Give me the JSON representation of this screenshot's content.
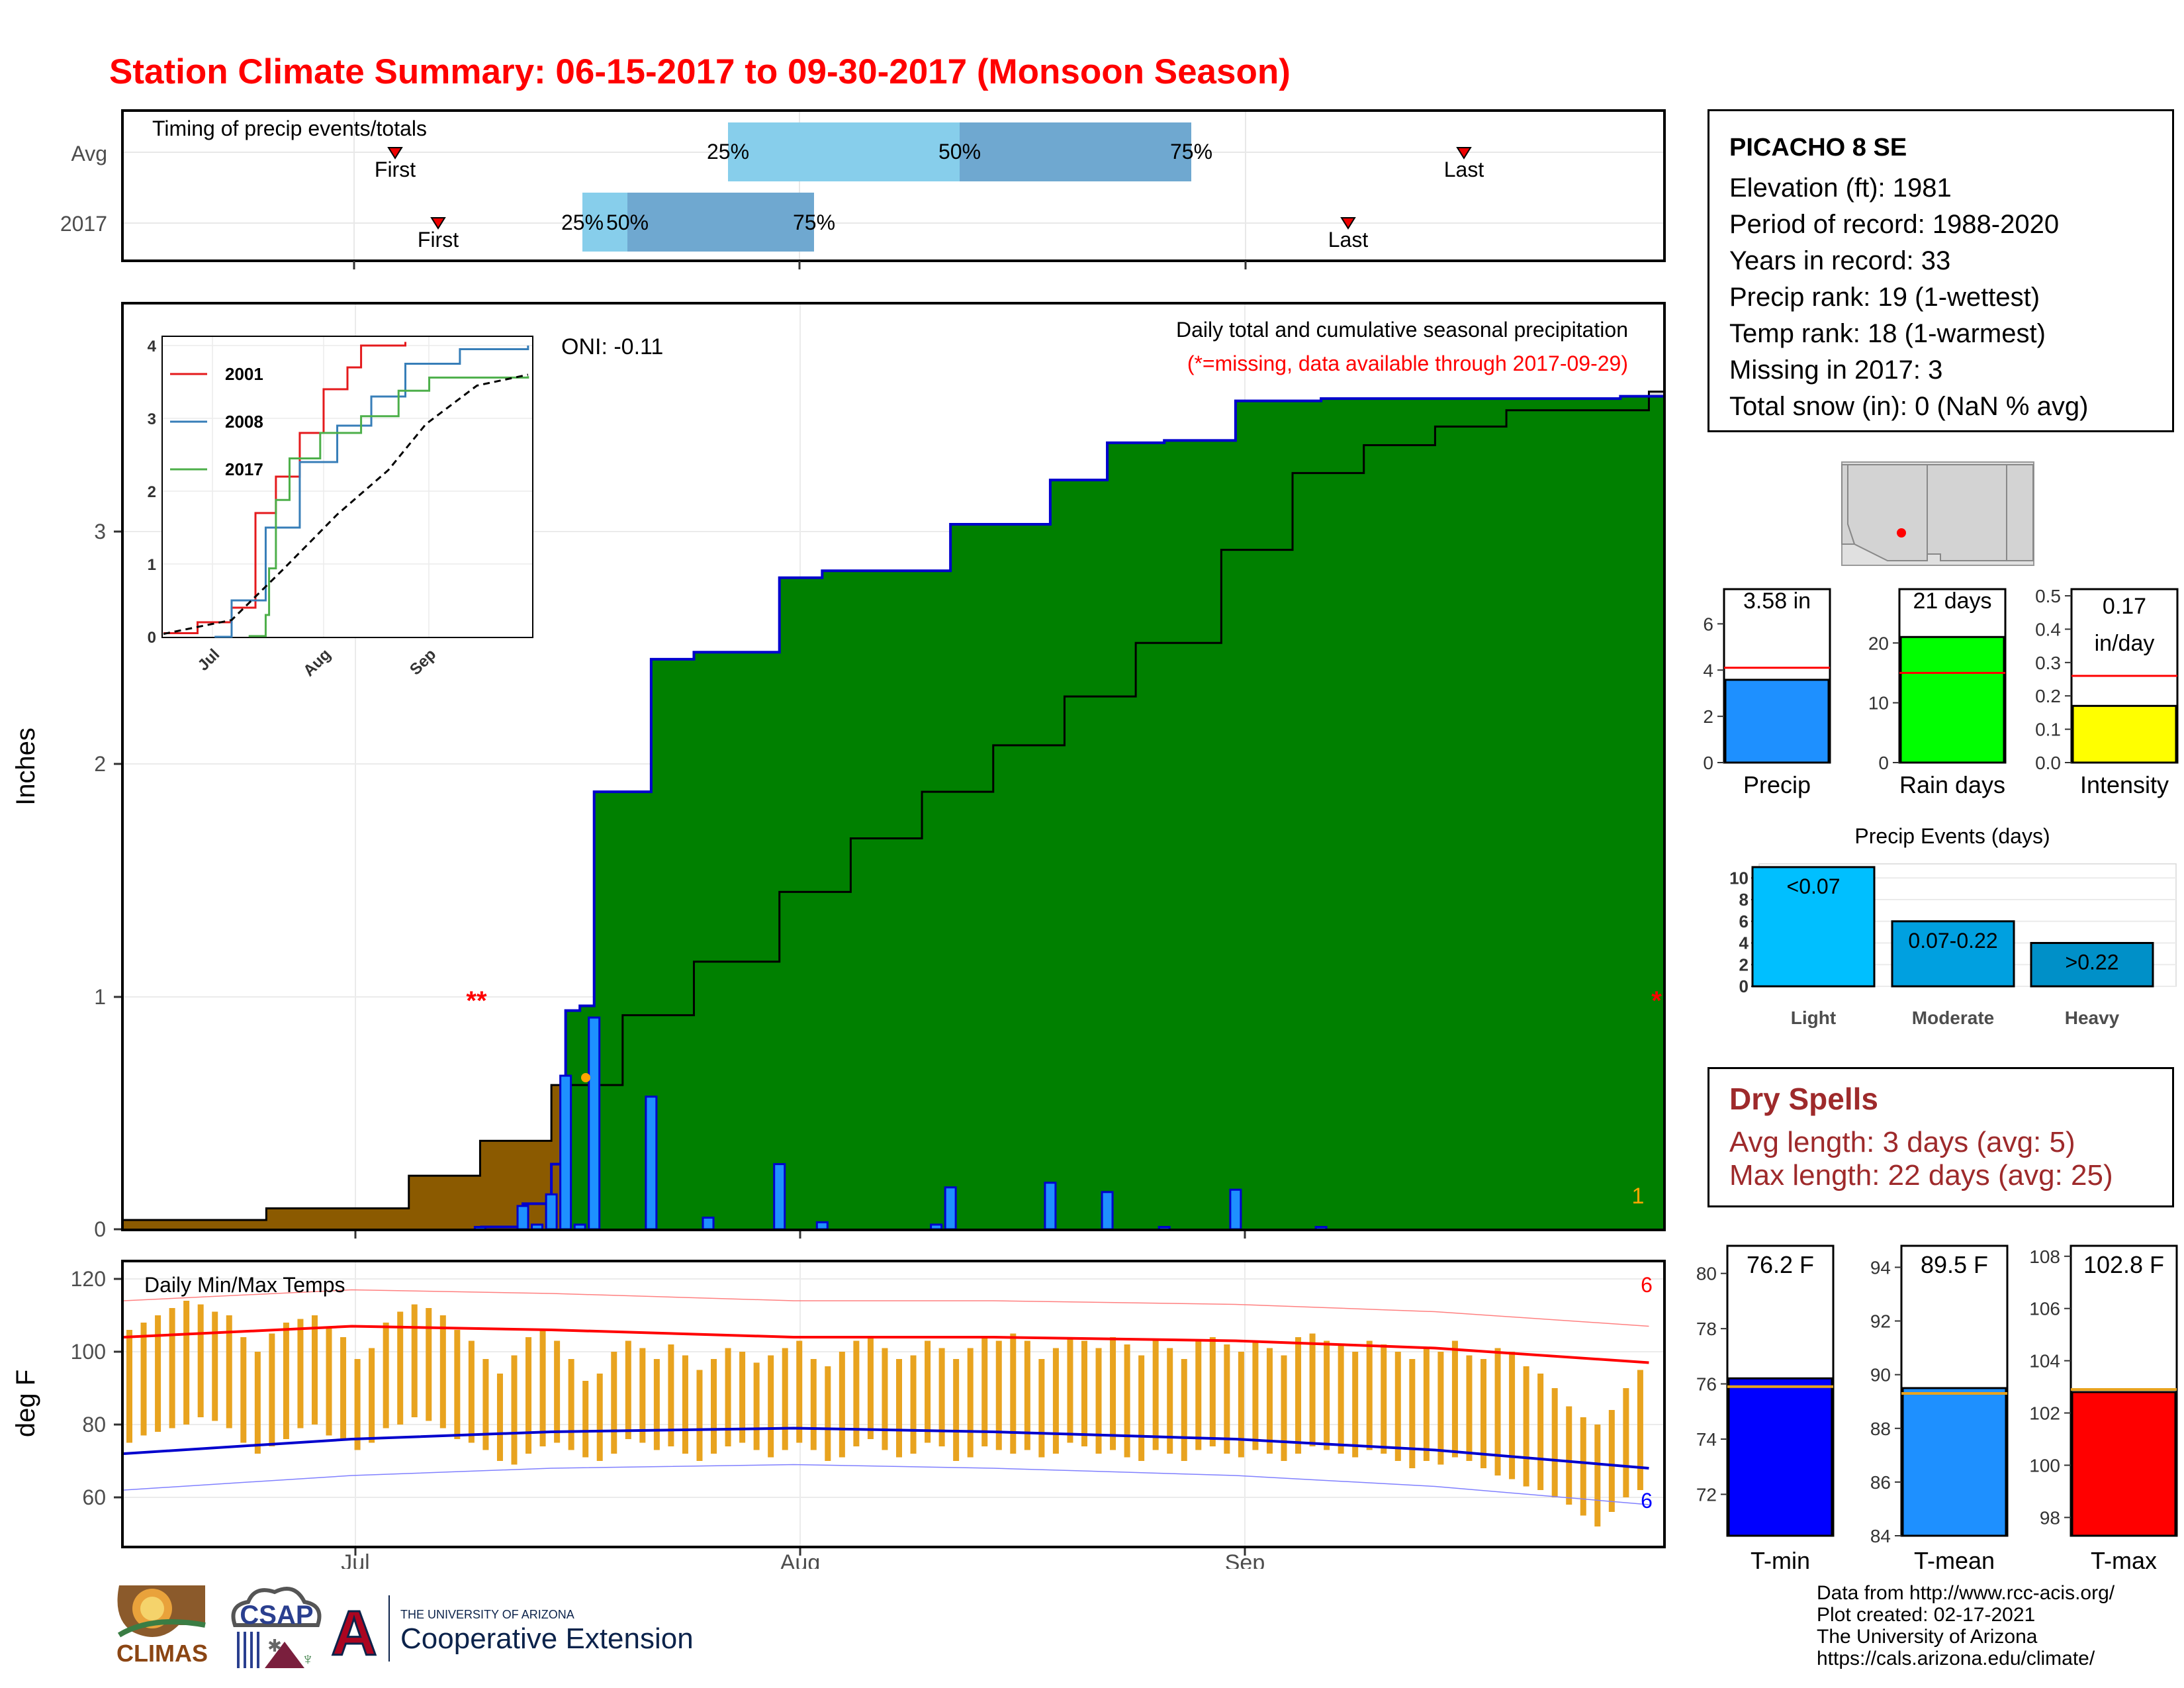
{
  "title": "Station Climate Summary: 06-15-2017 to 09-30-2017 (Monsoon Season)",
  "colors": {
    "title": "#ff0000",
    "cum_2017": "#8b5a00",
    "cum_above_avg": "#008000",
    "cum_avg_area": "#dddddd",
    "daily_bar": "#1e90ff",
    "timing_light": "#87ceeb",
    "timing_dark": "#6fa8d0",
    "tmax_line": "#ff0000",
    "tmin_line": "#0000cd",
    "temp_bar": "#e8a31f",
    "dry_spell_text": "#9e2a2b"
  },
  "timing": {
    "title": "Timing of precip events/totals",
    "rows": [
      {
        "label": "Avg",
        "first": "06-30",
        "q25": "07-29",
        "q50": "08-08",
        "q75": "08-23",
        "last": "09-14"
      },
      {
        "label": "2017",
        "first": "07-02",
        "q25": "07-16",
        "q50": "07-18",
        "q75": "07-31",
        "last": "09-06"
      }
    ],
    "first_label": "First",
    "last_label": "Last",
    "pct_labels": [
      "25%",
      "50%",
      "75%"
    ]
  },
  "main": {
    "ylabel": "Inches",
    "oni": "ONI: -0.11",
    "chart_title": "Daily total and cumulative seasonal precipitation",
    "subtitle": "(*=missing, data available through 2017-09-29)",
    "missing_markers": [
      "**",
      "*"
    ],
    "missing_count_label": "1",
    "yticks": [
      "0",
      "1",
      "2",
      "3"
    ],
    "xticks": [
      "Jul",
      "Aug",
      "Sep"
    ]
  },
  "inset": {
    "legend": [
      "2001",
      "2008",
      "2017"
    ],
    "yticks": [
      "0",
      "1",
      "2",
      "3",
      "4"
    ],
    "xticks": [
      "Jul",
      "Aug",
      "Sep"
    ]
  },
  "temps": {
    "title": "Daily Min/Max Temps",
    "ylabel": "deg F",
    "yticks": [
      "60",
      "80",
      "100",
      "120"
    ],
    "xticks": [
      "Jul",
      "Aug",
      "Sep"
    ],
    "count_max": "6",
    "count_min": "6"
  },
  "station": {
    "name": "PICACHO 8 SE",
    "lines": [
      "Elevation (ft): 1981",
      "Period of record: 1988-2020",
      "Years in record: 33",
      "Precip rank: 19 (1-wettest)",
      "Temp rank: 18 (1-warmest)",
      "Missing in 2017: 3",
      "Total snow (in): 0 (NaN % avg)"
    ]
  },
  "summary_bars": {
    "precip": {
      "label": "Precip",
      "value_label": "3.58 in",
      "value": 3.58,
      "avg": 4.1,
      "ymax": 7.5,
      "ticks": [
        "0",
        "2",
        "4",
        "6"
      ],
      "tick_vals": [
        0,
        2,
        4,
        6
      ],
      "color": "#1e90ff"
    },
    "raindays": {
      "label": "Rain days",
      "value_label": "21 days",
      "value": 21,
      "avg": 15,
      "ymax": 29,
      "ticks": [
        "0",
        "10",
        "20"
      ],
      "tick_vals": [
        0,
        10,
        20
      ],
      "color": "#00ff00"
    },
    "intensity": {
      "label": "Intensity",
      "value_label_1": "0.17",
      "value_label_2": "in/day",
      "value": 0.17,
      "avg": 0.26,
      "ymax": 0.52,
      "ticks": [
        "0.0",
        "0.1",
        "0.2",
        "0.3",
        "0.4",
        "0.5"
      ],
      "tick_vals": [
        0,
        0.1,
        0.2,
        0.3,
        0.4,
        0.5
      ],
      "color": "#ffff00"
    }
  },
  "events": {
    "title": "Precip Events (days)",
    "categories": [
      "Light",
      "Moderate",
      "Heavy"
    ],
    "bar_labels": [
      "<0.07",
      "0.07-0.22",
      ">0.22"
    ],
    "values": [
      11,
      6,
      4
    ],
    "yticks": [
      "0",
      "2",
      "4",
      "6",
      "8",
      "10"
    ],
    "colors": [
      "#00bfff",
      "#00a0e0",
      "#0090c8"
    ]
  },
  "dry_spells": {
    "title": "Dry Spells",
    "avg_line": "Avg length: 3 days (avg: 5)",
    "max_line": "Max length: 22 days (avg: 25)"
  },
  "temp_bars": {
    "tmin": {
      "label": "T-min",
      "value_label": "76.2 F",
      "value": 76.2,
      "avg": 75.9,
      "ymin": 70.5,
      "ymax": 81,
      "ticks": [
        "72",
        "74",
        "76",
        "78",
        "80"
      ],
      "tick_vals": [
        72,
        74,
        76,
        78,
        80
      ],
      "color": "#0000ff"
    },
    "tmean": {
      "label": "T-mean",
      "value_label": "89.5 F",
      "value": 89.5,
      "avg": 89.3,
      "ymin": 84,
      "ymax": 94.8,
      "ticks": [
        "84",
        "86",
        "88",
        "90",
        "92",
        "94"
      ],
      "tick_vals": [
        84,
        86,
        88,
        90,
        92,
        94
      ],
      "color": "#1e90ff"
    },
    "tmax": {
      "label": "T-max",
      "value_label": "102.8 F",
      "value": 102.8,
      "avg": 102.9,
      "ymin": 97.3,
      "ymax": 108.4,
      "ticks": [
        "98",
        "100",
        "102",
        "104",
        "106",
        "108"
      ],
      "tick_vals": [
        98,
        100,
        102,
        104,
        106,
        108
      ],
      "color": "#ff0000"
    }
  },
  "footer": {
    "lines": [
      "Data from http://www.rcc-acis.org/",
      "Plot created: 02-17-2021",
      "The University of Arizona",
      "https://cals.arizona.edu/climate/"
    ],
    "logo_climas": "CLIMAS",
    "logo_csap": "CSAP",
    "logo_ua_small": "THE UNIVERSITY OF ARIZONA",
    "logo_ua_big": "Cooperative Extension"
  },
  "chart_data": [
    {
      "type": "area",
      "name": "cumulative_precip",
      "title": "Daily total and cumulative seasonal precipitation",
      "ylabel": "Inches",
      "ylim": [
        0,
        3.6
      ],
      "start_date": "06-15",
      "daily_2017": [
        {
          "date": "07-10",
          "value": 0.01
        },
        {
          "date": "07-13",
          "value": 0.1
        },
        {
          "date": "07-14",
          "value": 0.02
        },
        {
          "date": "07-15",
          "value": 0.15
        },
        {
          "date": "07-16",
          "value": 0.66
        },
        {
          "date": "07-17",
          "value": 0.02
        },
        {
          "date": "07-18",
          "value": 0.91
        },
        {
          "date": "07-22",
          "value": 0.57
        },
        {
          "date": "07-26",
          "value": 0.05
        },
        {
          "date": "07-31",
          "value": 0.28
        },
        {
          "date": "08-03",
          "value": 0.03
        },
        {
          "date": "08-11",
          "value": 0.02
        },
        {
          "date": "08-12",
          "value": 0.18
        },
        {
          "date": "08-19",
          "value": 0.2
        },
        {
          "date": "08-23",
          "value": 0.16
        },
        {
          "date": "08-27",
          "value": 0.01
        },
        {
          "date": "09-01",
          "value": 0.17
        },
        {
          "date": "09-07",
          "value": 0.01
        }
      ],
      "cumulative_2017": [
        {
          "date": "07-10",
          "value": 0.01
        },
        {
          "date": "07-13",
          "value": 0.11
        },
        {
          "date": "07-15",
          "value": 0.28
        },
        {
          "date": "07-16",
          "value": 0.94
        },
        {
          "date": "07-17",
          "value": 0.96
        },
        {
          "date": "07-18",
          "value": 1.88
        },
        {
          "date": "07-22",
          "value": 2.45
        },
        {
          "date": "07-25",
          "value": 2.48
        },
        {
          "date": "07-31",
          "value": 2.8
        },
        {
          "date": "08-03",
          "value": 2.83
        },
        {
          "date": "08-12",
          "value": 3.03
        },
        {
          "date": "08-19",
          "value": 3.22
        },
        {
          "date": "08-23",
          "value": 3.38
        },
        {
          "date": "08-27",
          "value": 3.39
        },
        {
          "date": "09-01",
          "value": 3.56
        },
        {
          "date": "09-07",
          "value": 3.57
        },
        {
          "date": "09-28",
          "value": 3.58
        }
      ],
      "cumulative_avg": [
        {
          "date": "06-15",
          "value": 0.04
        },
        {
          "date": "06-25",
          "value": 0.09
        },
        {
          "date": "07-05",
          "value": 0.23
        },
        {
          "date": "07-10",
          "value": 0.38
        },
        {
          "date": "07-15",
          "value": 0.62
        },
        {
          "date": "07-20",
          "value": 0.92
        },
        {
          "date": "07-25",
          "value": 1.15
        },
        {
          "date": "07-31",
          "value": 1.45
        },
        {
          "date": "08-05",
          "value": 1.68
        },
        {
          "date": "08-10",
          "value": 1.88
        },
        {
          "date": "08-15",
          "value": 2.08
        },
        {
          "date": "08-20",
          "value": 2.29
        },
        {
          "date": "08-25",
          "value": 2.52
        },
        {
          "date": "08-31",
          "value": 2.92
        },
        {
          "date": "09-05",
          "value": 3.25
        },
        {
          "date": "09-10",
          "value": 3.37
        },
        {
          "date": "09-15",
          "value": 3.45
        },
        {
          "date": "09-20",
          "value": 3.52
        },
        {
          "date": "09-30",
          "value": 3.6
        }
      ]
    },
    {
      "type": "line",
      "name": "inset_cumulative",
      "ylim": [
        0,
        4.1
      ],
      "series": [
        {
          "name": "2001",
          "color": "#e41a1c",
          "values": [
            {
              "date": "06-15",
              "value": 0.05
            },
            {
              "date": "06-25",
              "value": 0.2
            },
            {
              "date": "07-05",
              "value": 0.4
            },
            {
              "date": "07-12",
              "value": 1.7
            },
            {
              "date": "07-18",
              "value": 2.2
            },
            {
              "date": "07-25",
              "value": 2.8
            },
            {
              "date": "08-01",
              "value": 3.4
            },
            {
              "date": "08-08",
              "value": 3.7
            },
            {
              "date": "08-12",
              "value": 4.0
            },
            {
              "date": "08-25",
              "value": 4.05
            }
          ]
        },
        {
          "name": "2008",
          "color": "#377eb8",
          "values": [
            {
              "date": "06-30",
              "value": 0.0
            },
            {
              "date": "07-05",
              "value": 0.5
            },
            {
              "date": "07-15",
              "value": 1.5
            },
            {
              "date": "07-25",
              "value": 2.4
            },
            {
              "date": "08-05",
              "value": 2.9
            },
            {
              "date": "08-15",
              "value": 3.3
            },
            {
              "date": "08-25",
              "value": 3.75
            },
            {
              "date": "09-10",
              "value": 3.95
            },
            {
              "date": "09-30",
              "value": 4.0
            }
          ]
        },
        {
          "name": "2017",
          "color": "#4daf4a",
          "values": [
            {
              "date": "07-10",
              "value": 0.01
            },
            {
              "date": "07-15",
              "value": 0.3
            },
            {
              "date": "07-16",
              "value": 0.94
            },
            {
              "date": "07-18",
              "value": 1.88
            },
            {
              "date": "07-22",
              "value": 2.45
            },
            {
              "date": "07-31",
              "value": 2.8
            },
            {
              "date": "08-12",
              "value": 3.03
            },
            {
              "date": "08-23",
              "value": 3.38
            },
            {
              "date": "09-01",
              "value": 3.56
            },
            {
              "date": "09-30",
              "value": 3.58
            }
          ]
        },
        {
          "name": "avg",
          "color": "#000000",
          "values": [
            {
              "date": "06-15",
              "value": 0.04
            },
            {
              "date": "07-05",
              "value": 0.23
            },
            {
              "date": "07-20",
              "value": 0.92
            },
            {
              "date": "08-05",
              "value": 1.68
            },
            {
              "date": "08-20",
              "value": 2.29
            },
            {
              "date": "08-31",
              "value": 2.92
            },
            {
              "date": "09-15",
              "value": 3.45
            },
            {
              "date": "09-30",
              "value": 3.6
            }
          ]
        }
      ]
    },
    {
      "type": "bar",
      "name": "daily_temps",
      "title": "Daily Min/Max Temps",
      "ylabel": "deg F",
      "ylim": [
        48,
        122
      ],
      "tmax_2017": [
        106,
        108,
        110,
        112,
        114,
        113,
        111,
        110,
        104,
        100,
        105,
        108,
        109,
        110,
        107,
        104,
        98,
        101,
        108,
        111,
        113,
        112,
        110,
        106,
        103,
        98,
        94,
        99,
        104,
        106,
        103,
        98,
        92,
        94,
        100,
        103,
        101,
        98,
        102,
        99,
        95,
        98,
        101,
        100,
        97,
        99,
        101,
        103,
        98,
        96,
        100,
        103,
        104,
        101,
        98,
        99,
        103,
        101,
        98,
        101,
        104,
        103,
        105,
        103,
        98,
        101,
        104,
        103,
        101,
        104,
        102,
        99,
        103,
        101,
        98,
        103,
        104,
        102,
        100,
        103,
        101,
        99,
        104,
        105,
        103,
        102,
        100,
        103,
        102,
        100,
        98,
        101,
        100,
        103,
        99,
        98,
        101,
        100,
        96,
        94,
        90,
        85,
        82,
        80,
        84,
        90,
        95
      ],
      "tmin_2017": [
        75,
        77,
        78,
        79,
        80,
        82,
        81,
        79,
        75,
        72,
        74,
        76,
        79,
        80,
        77,
        76,
        73,
        75,
        79,
        80,
        82,
        81,
        79,
        76,
        75,
        73,
        70,
        69,
        72,
        74,
        75,
        73,
        71,
        70,
        72,
        76,
        75,
        73,
        74,
        72,
        70,
        72,
        74,
        75,
        73,
        71,
        73,
        75,
        73,
        70,
        71,
        74,
        76,
        73,
        71,
        72,
        75,
        74,
        70,
        71,
        74,
        73,
        72,
        73,
        71,
        72,
        75,
        74,
        72,
        73,
        71,
        70,
        73,
        72,
        70,
        73,
        74,
        72,
        71,
        73,
        72,
        70,
        72,
        74,
        73,
        72,
        71,
        73,
        72,
        70,
        68,
        70,
        69,
        71,
        70,
        68,
        66,
        65,
        63,
        62,
        60,
        58,
        55,
        52,
        56,
        60,
        62
      ],
      "tmax_avg_line": [
        {
          "date": "06-15",
          "value": 104
        },
        {
          "date": "07-01",
          "value": 107
        },
        {
          "date": "07-15",
          "value": 106
        },
        {
          "date": "08-01",
          "value": 104
        },
        {
          "date": "08-15",
          "value": 104
        },
        {
          "date": "09-01",
          "value": 103
        },
        {
          "date": "09-15",
          "value": 101
        },
        {
          "date": "09-30",
          "value": 97
        }
      ],
      "tmin_avg_line": [
        {
          "date": "06-15",
          "value": 72
        },
        {
          "date": "07-01",
          "value": 76
        },
        {
          "date": "07-15",
          "value": 78
        },
        {
          "date": "08-01",
          "value": 79
        },
        {
          "date": "08-15",
          "value": 78
        },
        {
          "date": "09-01",
          "value": 76
        },
        {
          "date": "09-15",
          "value": 73
        },
        {
          "date": "09-30",
          "value": 68
        }
      ]
    },
    {
      "type": "bar",
      "name": "precip_summary",
      "categories": [
        "Precip",
        "Rain days",
        "Intensity"
      ],
      "values": [
        3.58,
        21,
        0.17
      ]
    },
    {
      "type": "bar",
      "name": "precip_events",
      "title": "Precip Events (days)",
      "categories": [
        "Light",
        "Moderate",
        "Heavy"
      ],
      "values": [
        11,
        6,
        4
      ],
      "ylim": [
        0,
        11
      ]
    },
    {
      "type": "bar",
      "name": "temp_summary",
      "categories": [
        "T-min",
        "T-mean",
        "T-max"
      ],
      "values": [
        76.2,
        89.5,
        102.8
      ]
    }
  ]
}
